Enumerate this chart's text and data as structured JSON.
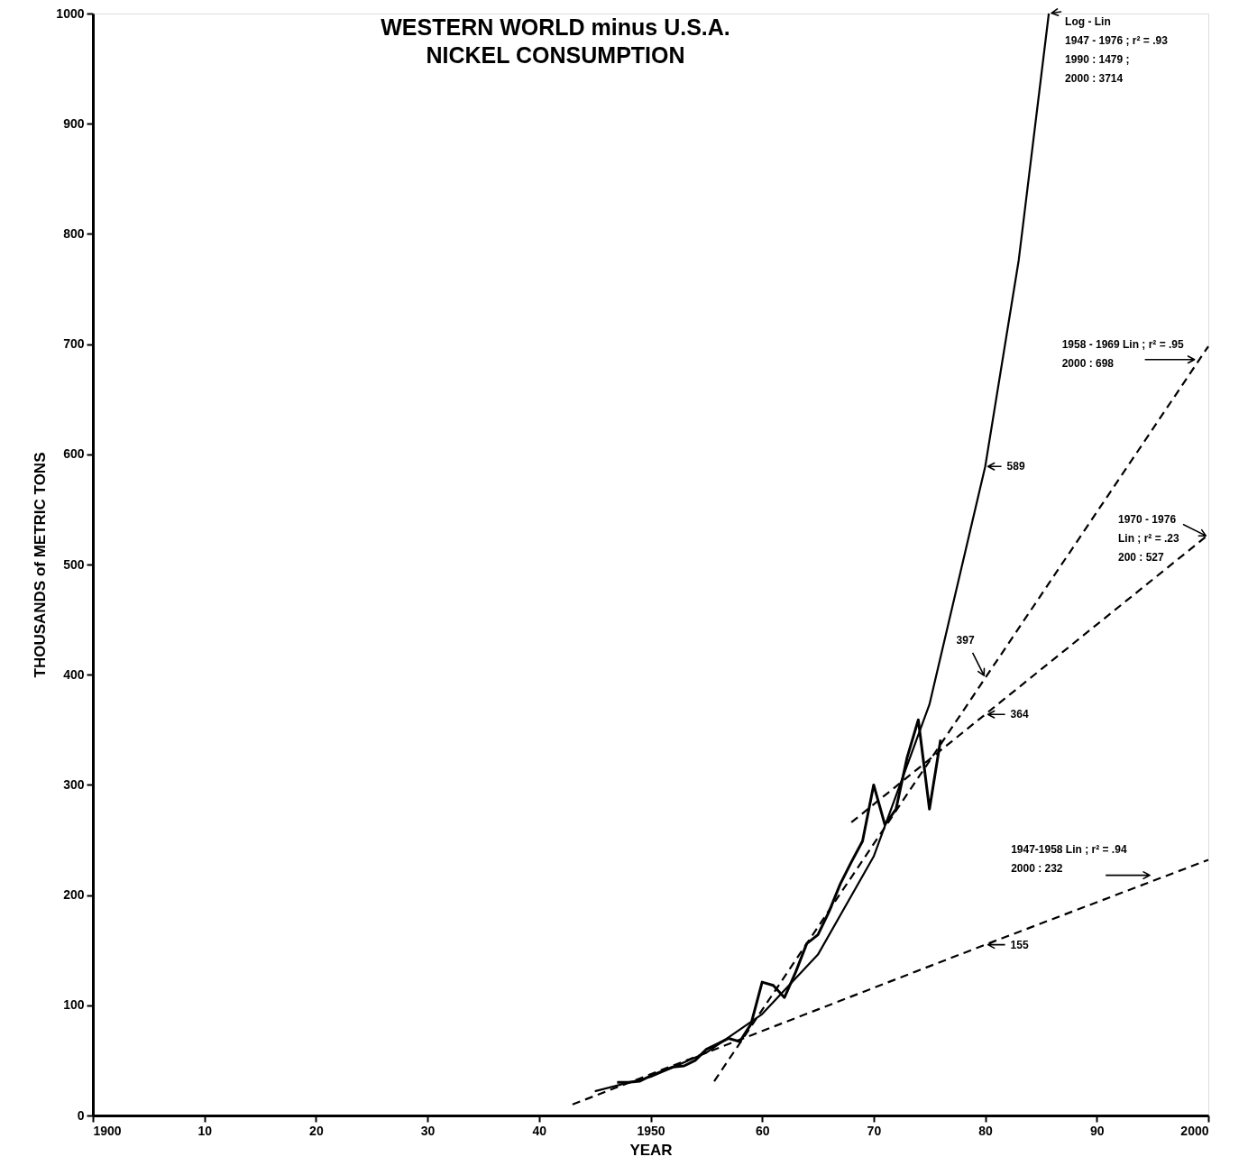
{
  "chart_data": {
    "type": "line",
    "title": "WESTERN WORLD minus U.S.A.",
    "subtitle": "NICKEL CONSUMPTION",
    "xlabel": "YEAR",
    "ylabel": "THOUSANDS of METRIC TONS",
    "xlim": [
      1900,
      2000
    ],
    "ylim": [
      0,
      1000
    ],
    "xticks": [
      {
        "value": 1900,
        "label": "1900"
      },
      {
        "value": 1910,
        "label": "10"
      },
      {
        "value": 1920,
        "label": "20"
      },
      {
        "value": 1930,
        "label": "30"
      },
      {
        "value": 1940,
        "label": "40"
      },
      {
        "value": 1950,
        "label": "1950"
      },
      {
        "value": 1960,
        "label": "60"
      },
      {
        "value": 1970,
        "label": "70"
      },
      {
        "value": 1980,
        "label": "80"
      },
      {
        "value": 1990,
        "label": "90"
      },
      {
        "value": 2000,
        "label": "2000"
      }
    ],
    "yticks": [
      0,
      100,
      200,
      300,
      400,
      500,
      600,
      700,
      800,
      900,
      1000
    ],
    "grid": false,
    "series": [
      {
        "color": "#000000",
        "line_style": "solid",
        "x": [
          1947,
          1948,
          1949,
          1950,
          1951,
          1952,
          1953,
          1954,
          1955,
          1956,
          1957,
          1958,
          1959,
          1960,
          1961,
          1962,
          1963,
          1964,
          1965,
          1966,
          1967,
          1968,
          1969,
          1970,
          1971,
          1972,
          1973,
          1974,
          1975,
          1976
        ],
        "values": [
          30,
          30,
          31,
          36,
          40,
          44,
          45,
          50,
          60,
          65,
          70,
          67,
          83,
          121,
          118,
          107,
          130,
          156,
          164,
          185,
          210,
          230,
          249,
          300,
          264,
          278,
          325,
          359,
          278,
          341
        ]
      },
      {
        "color": "#000000",
        "line_style": "solid",
        "x": [
          1945,
          1950,
          1955,
          1960,
          1965,
          1970,
          1975,
          1980,
          1983,
          1985.7
        ],
        "values": [
          22,
          35,
          57,
          92,
          146,
          235,
          373,
          589,
          776,
          1000
        ]
      },
      {
        "color": "#000000",
        "line_style": "dashed",
        "x": [
          1943,
          1980,
          2000
        ],
        "values": [
          10,
          155,
          232
        ]
      },
      {
        "color": "#000000",
        "line_style": "dashed",
        "x": [
          1955.7,
          1980,
          2000
        ],
        "values": [
          31,
          397,
          698
        ]
      },
      {
        "color": "#000000",
        "line_style": "dashed",
        "x": [
          1968,
          1980,
          2000
        ],
        "values": [
          266,
          364,
          527
        ]
      }
    ],
    "annotations": [
      {
        "text": "Log - Lin\n1947 - 1976 ; r² = .93\n1990 : 1479 ;\n2000 : 3714",
        "x": 1985.7,
        "y": 1000
      },
      {
        "text": "1958 - 1969 Lin ; r² = .95\n2000 : 698",
        "x": 1999,
        "y": 686
      },
      {
        "text": "1970 - 1976\nLin ; r² = .23\n200 : 527",
        "x": 2000,
        "y": 525
      },
      {
        "text": "1947-1958 Lin ; r² = .94\n2000 : 232",
        "x": 1995,
        "y": 218
      },
      {
        "text": "589",
        "x": 1980,
        "y": 589
      },
      {
        "text": "397",
        "x": 1980,
        "y": 397
      },
      {
        "text": "364",
        "x": 1980,
        "y": 364
      },
      {
        "text": "155",
        "x": 1980,
        "y": 155
      }
    ]
  }
}
